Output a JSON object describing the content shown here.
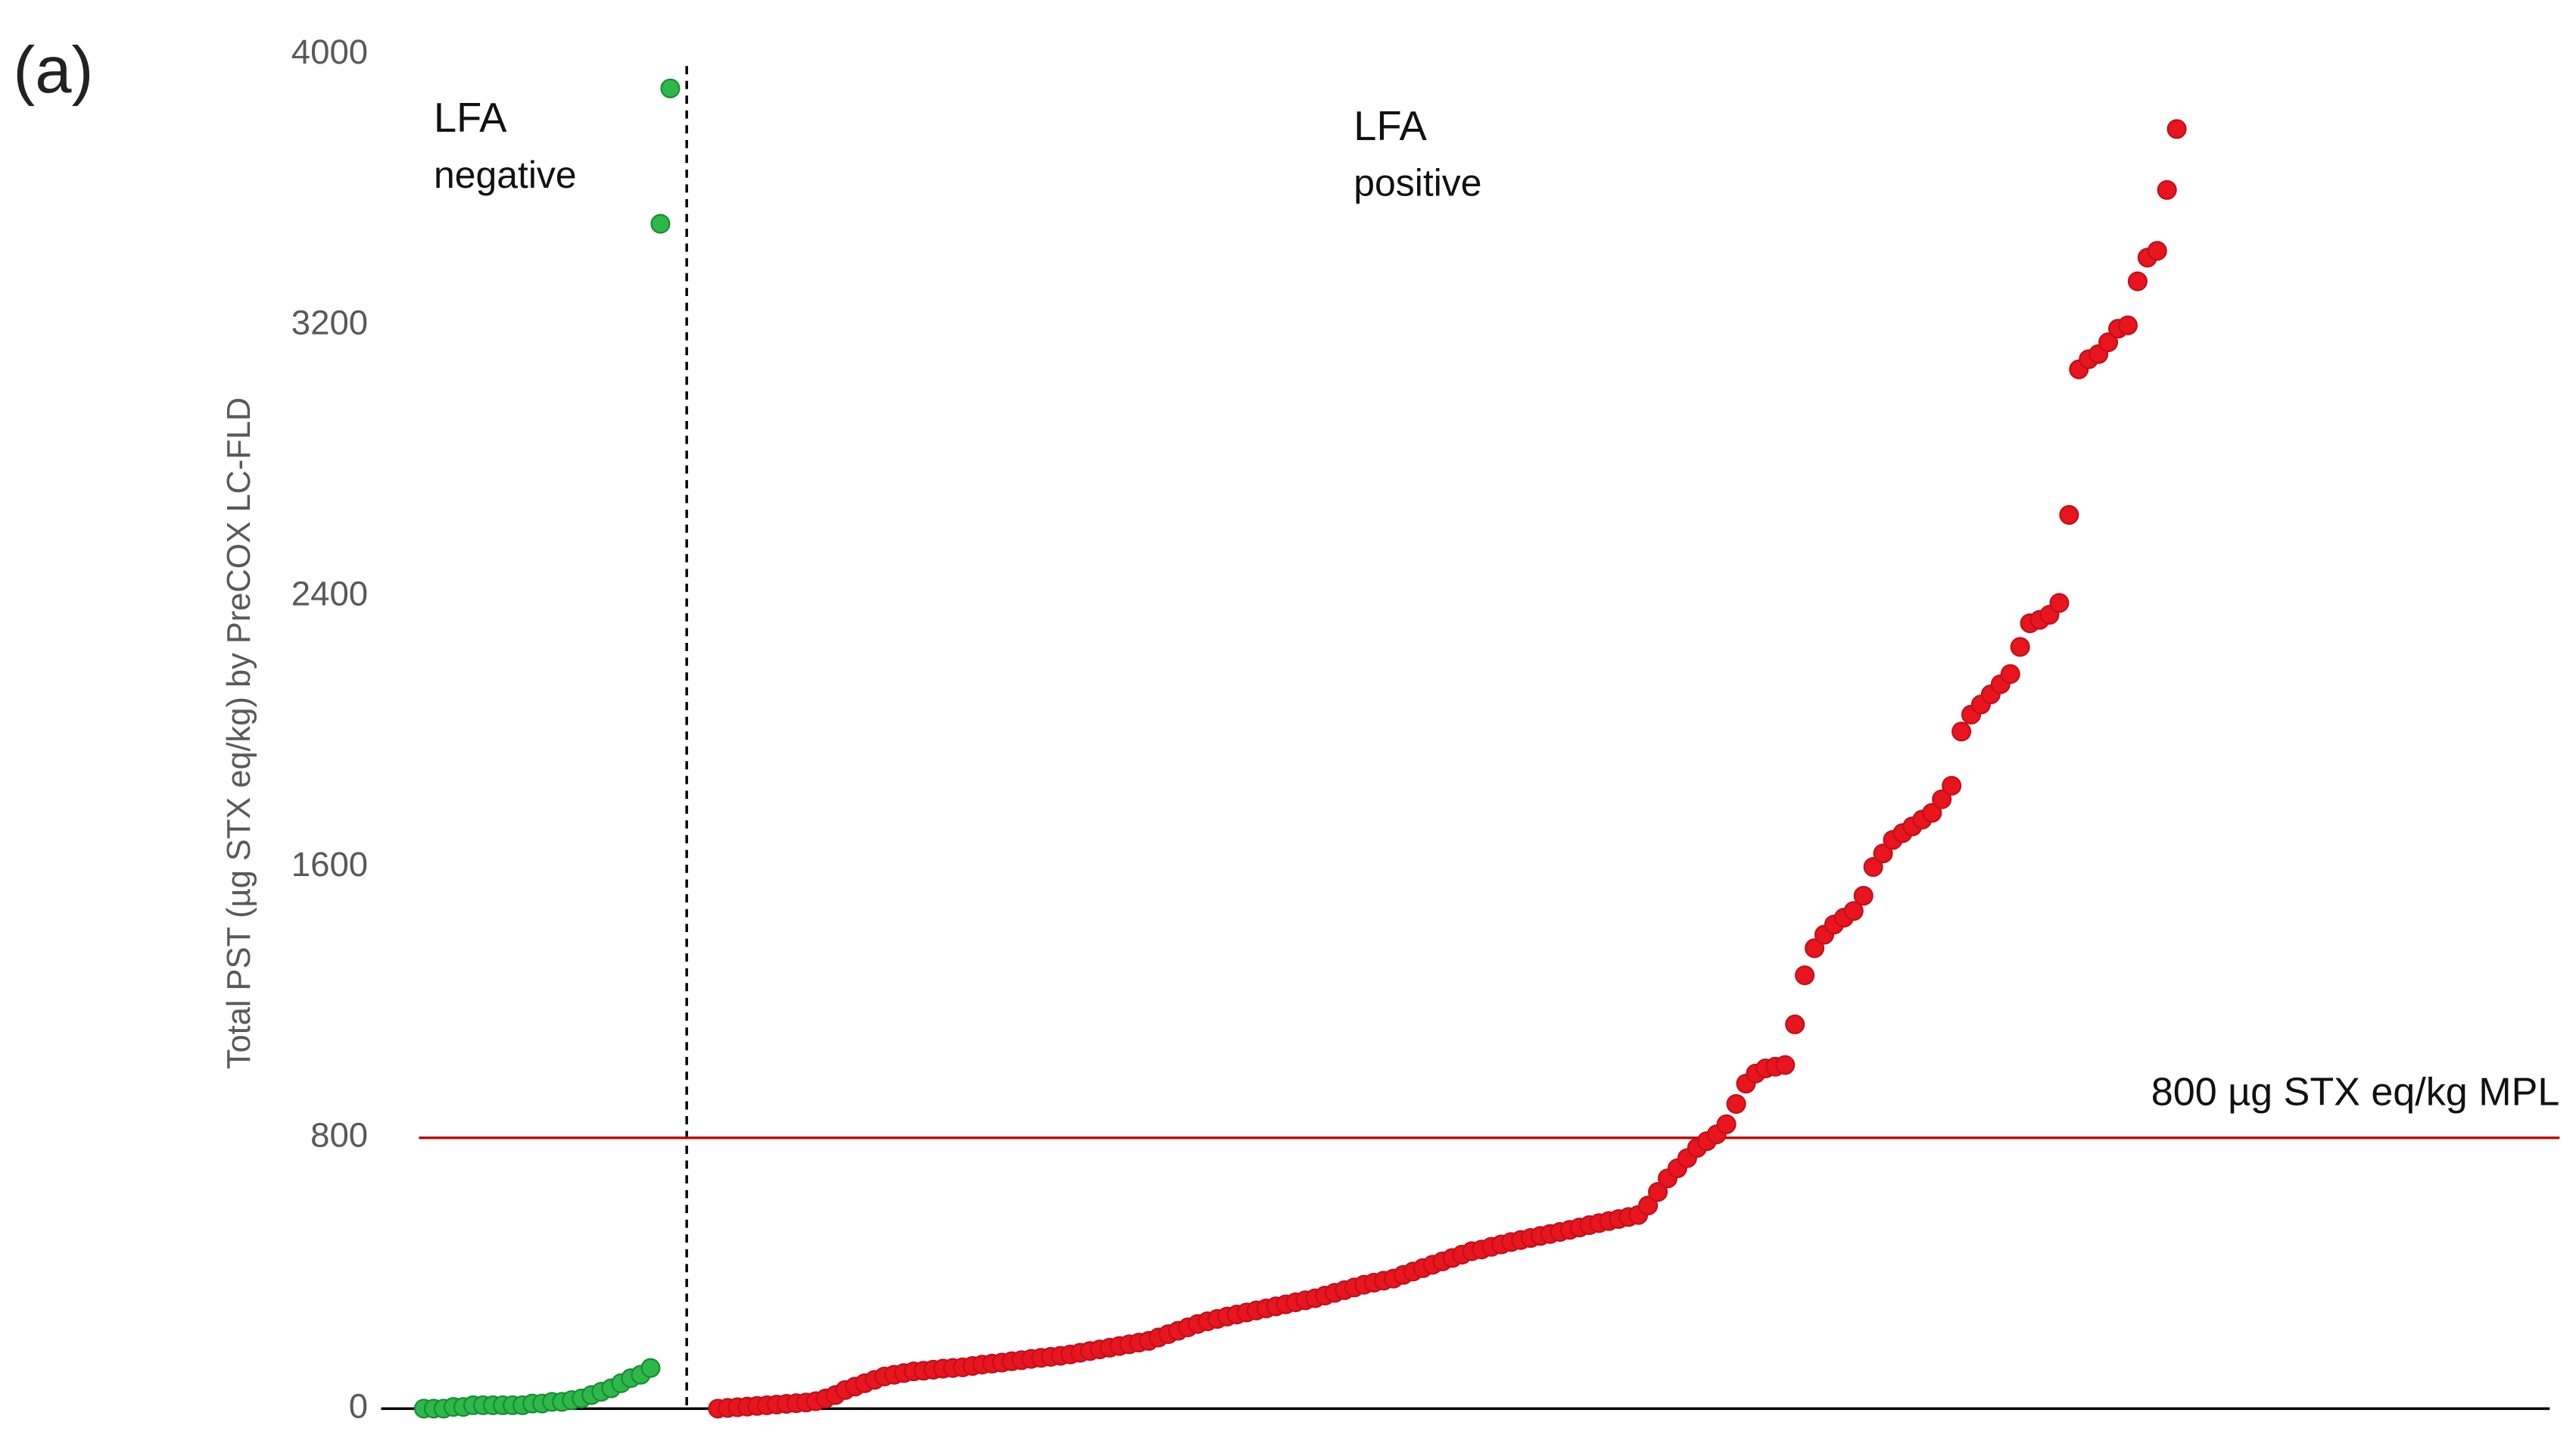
{
  "chart_data": {
    "type": "scatter",
    "panel_label": "(a)",
    "y_label": "Total PST (µg STX eq/kg) by PreCOX LC-FLD",
    "ylim": [
      0,
      4000
    ],
    "yticks": [
      0,
      800,
      1600,
      2400,
      3200,
      4000
    ],
    "grid": false,
    "hline": {
      "value": 800,
      "label": "800 µg STX eq/kg MPL",
      "color": "#c00000"
    },
    "annotations": [
      "LFA",
      "negative",
      "LFA",
      "positive"
    ],
    "series": [
      {
        "color": "#2db84a",
        "values": [
          0,
          0,
          0,
          5,
          5,
          10,
          10,
          10,
          10,
          10,
          10,
          15,
          15,
          20,
          20,
          25,
          30,
          40,
          50,
          60,
          75,
          90,
          100,
          120,
          3500,
          3900
        ]
      },
      {
        "color": "#e8141e",
        "values": [
          0,
          2,
          4,
          6,
          8,
          10,
          12,
          14,
          16,
          18,
          22,
          30,
          40,
          55,
          65,
          75,
          85,
          95,
          100,
          105,
          110,
          112,
          115,
          118,
          120,
          122,
          126,
          130,
          133,
          136,
          140,
          143,
          147,
          150,
          153,
          156,
          160,
          165,
          170,
          175,
          180,
          185,
          190,
          195,
          200,
          210,
          220,
          230,
          240,
          250,
          258,
          265,
          272,
          278,
          284,
          290,
          296,
          302,
          308,
          314,
          320,
          326,
          334,
          342,
          350,
          358,
          366,
          372,
          378,
          384,
          395,
          405,
          415,
          425,
          435,
          445,
          455,
          465,
          470,
          478,
          485,
          492,
          498,
          504,
          510,
          516,
          522,
          528,
          535,
          542,
          548,
          554,
          560,
          566,
          572,
          600,
          640,
          680,
          710,
          740,
          770,
          790,
          810,
          840,
          900,
          960,
          990,
          1005,
          1010,
          1015,
          1135,
          1280,
          1360,
          1400,
          1430,
          1450,
          1470,
          1515,
          1600,
          1640,
          1680,
          1700,
          1720,
          1740,
          1760,
          1800,
          1840,
          2000,
          2050,
          2080,
          2110,
          2140,
          2170,
          2250,
          2320,
          2330,
          2345,
          2380,
          2640,
          3070,
          3100,
          3115,
          3150,
          3190,
          3200,
          3330,
          3400,
          3420,
          3600,
          3780
        ]
      }
    ]
  }
}
